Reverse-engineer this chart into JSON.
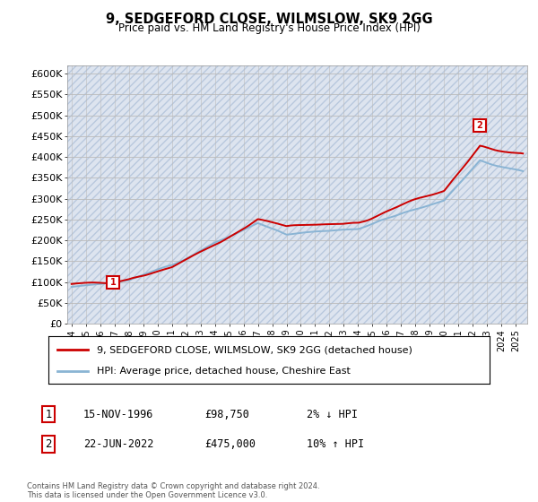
{
  "title": "9, SEDGEFORD CLOSE, WILMSLOW, SK9 2GG",
  "subtitle": "Price paid vs. HM Land Registry's House Price Index (HPI)",
  "ylim": [
    0,
    620000
  ],
  "yticks": [
    0,
    50000,
    100000,
    150000,
    200000,
    250000,
    300000,
    350000,
    400000,
    450000,
    500000,
    550000,
    600000
  ],
  "ytick_labels": [
    "£0",
    "£50K",
    "£100K",
    "£150K",
    "£200K",
    "£250K",
    "£300K",
    "£350K",
    "£400K",
    "£450K",
    "£500K",
    "£550K",
    "£600K"
  ],
  "xlim_start": 1993.7,
  "xlim_end": 2025.8,
  "transaction1_x": 1996.88,
  "transaction1_y": 98750,
  "transaction2_x": 2022.47,
  "transaction2_y": 475000,
  "property_color": "#cc0000",
  "hpi_color": "#8ab4d4",
  "hatch_facecolor": "#dde4ef",
  "hatch_edgecolor": "#b8c8de",
  "grid_color": "#bbbbbb",
  "legend_label_property": "9, SEDGEFORD CLOSE, WILMSLOW, SK9 2GG (detached house)",
  "legend_label_hpi": "HPI: Average price, detached house, Cheshire East",
  "note1_index": "1",
  "note1_date": "15-NOV-1996",
  "note1_price": "£98,750",
  "note1_hpi": "2% ↓ HPI",
  "note2_index": "2",
  "note2_date": "22-JUN-2022",
  "note2_price": "£475,000",
  "note2_hpi": "10% ↑ HPI",
  "footer": "Contains HM Land Registry data © Crown copyright and database right 2024.\nThis data is licensed under the Open Government Licence v3.0."
}
